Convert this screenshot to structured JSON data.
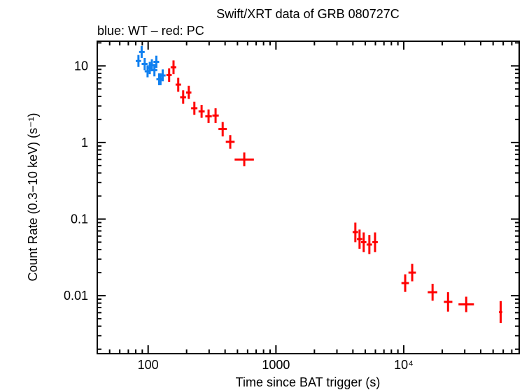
{
  "chart_data": {
    "type": "scatter",
    "title": "Swift/XRT data of GRB 080727C",
    "subtitle": "blue: WT – red: PC",
    "xlabel": "Time since BAT trigger (s)",
    "ylabel": "Count Rate (0.3−10 keV) (s⁻¹)",
    "x_scale": "log",
    "y_scale": "log",
    "xlim": [
      40,
      80000
    ],
    "ylim": [
      0.00175,
      21
    ],
    "x_tick_labels": [
      {
        "value": 100,
        "label": "100"
      },
      {
        "value": 1000,
        "label": "1000"
      },
      {
        "value": 10000,
        "label": "10⁴"
      }
    ],
    "y_tick_labels": [
      {
        "value": 10,
        "label": "10"
      },
      {
        "value": 1,
        "label": "1"
      },
      {
        "value": 0.1,
        "label": "0.1"
      },
      {
        "value": 0.01,
        "label": "0.01"
      }
    ],
    "grid": false,
    "point_format": [
      "x",
      "x_low",
      "x_high",
      "y",
      "y_low",
      "y_high"
    ],
    "series": [
      {
        "mode": "WT",
        "color": "#1080f0",
        "points": [
          [
            84,
            80,
            88,
            11.6,
            9.7,
            13.9
          ],
          [
            89,
            85,
            94,
            15.2,
            12.7,
            18.2
          ],
          [
            94,
            89,
            99,
            10.6,
            8.8,
            12.7
          ],
          [
            99,
            94,
            104,
            8.5,
            7.1,
            10.2
          ],
          [
            103,
            98,
            108,
            9.4,
            7.8,
            11.3
          ],
          [
            107,
            102,
            112,
            10.2,
            8.5,
            12.2
          ],
          [
            112,
            107,
            118,
            8.8,
            7.3,
            10.6
          ],
          [
            116,
            110,
            122,
            11.3,
            9.4,
            13.6
          ],
          [
            122,
            116,
            128,
            6.7,
            5.6,
            8.0
          ],
          [
            125,
            119,
            131,
            6.7,
            5.6,
            8.0
          ],
          [
            130,
            124,
            137,
            7.5,
            6.3,
            9.0
          ]
        ]
      },
      {
        "mode": "PC",
        "color": "#ff0000",
        "points": [
          [
            146,
            139,
            153,
            7.6,
            6.2,
            9.3
          ],
          [
            158,
            150,
            166,
            9.6,
            7.8,
            11.8
          ],
          [
            172,
            164,
            181,
            5.7,
            4.6,
            7.0
          ],
          [
            188,
            178,
            198,
            3.9,
            3.2,
            4.8
          ],
          [
            208,
            198,
            218,
            4.5,
            3.7,
            5.5
          ],
          [
            230,
            217,
            243,
            2.8,
            2.3,
            3.4
          ],
          [
            262,
            248,
            277,
            2.55,
            2.1,
            3.1
          ],
          [
            297,
            280,
            315,
            2.2,
            1.8,
            2.7
          ],
          [
            337,
            318,
            357,
            2.25,
            1.8,
            2.8
          ],
          [
            383,
            355,
            413,
            1.5,
            1.2,
            1.85
          ],
          [
            439,
            405,
            475,
            1.02,
            0.83,
            1.25
          ],
          [
            565,
            475,
            672,
            0.6,
            0.49,
            0.74
          ],
          [
            4180,
            3980,
            4390,
            0.0676,
            0.05,
            0.09
          ],
          [
            4510,
            4300,
            4740,
            0.0548,
            0.041,
            0.073
          ],
          [
            4860,
            4630,
            5100,
            0.05,
            0.037,
            0.067
          ],
          [
            5380,
            5120,
            5650,
            0.0465,
            0.035,
            0.062
          ],
          [
            5960,
            5680,
            6260,
            0.05,
            0.037,
            0.067
          ],
          [
            10260,
            9590,
            10980,
            0.0146,
            0.0112,
            0.019
          ],
          [
            11640,
            10880,
            12450,
            0.02,
            0.0154,
            0.026
          ],
          [
            16800,
            15400,
            18300,
            0.0111,
            0.0086,
            0.0143
          ],
          [
            22200,
            20600,
            24000,
            0.0083,
            0.0062,
            0.0111
          ],
          [
            30800,
            26800,
            35400,
            0.0077,
            0.0061,
            0.0097
          ],
          [
            57300,
            55600,
            59000,
            0.0061,
            0.0044,
            0.0085
          ]
        ]
      }
    ]
  }
}
